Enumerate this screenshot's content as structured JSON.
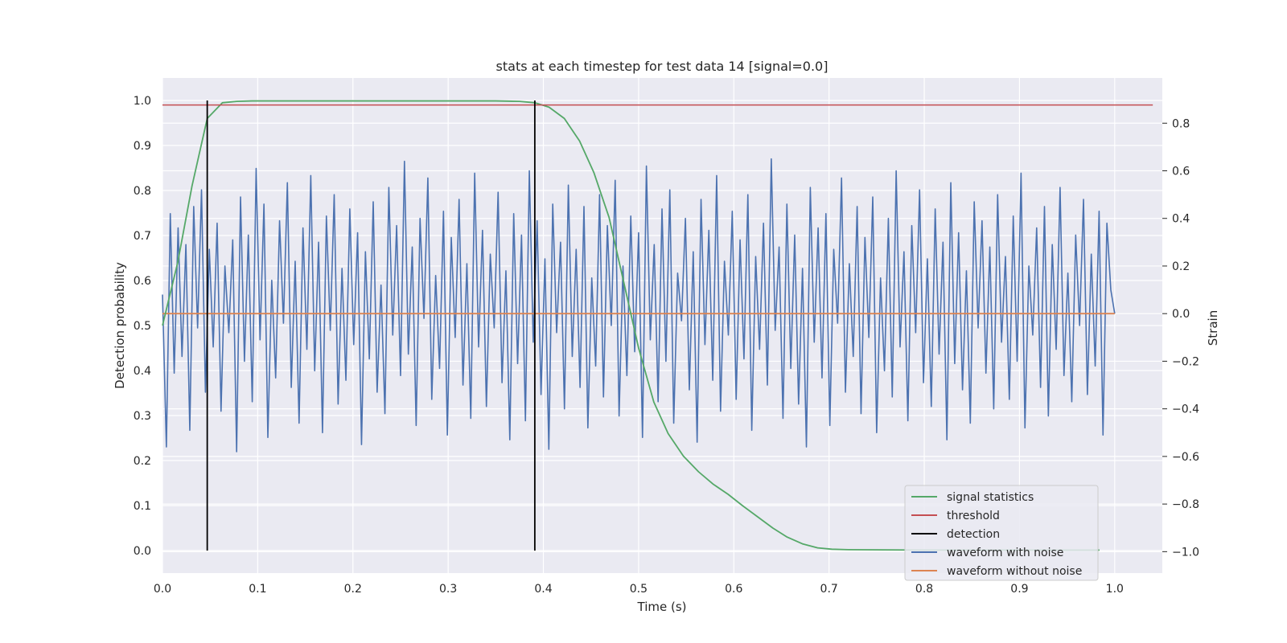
{
  "chart_data": {
    "type": "line",
    "title": "stats at each timestep for test data 14 [signal=0.0]",
    "xlabel": "Time (s)",
    "ylabel_left": "Detection probability",
    "ylabel_right": "Strain",
    "xlim": [
      0.0,
      1.05
    ],
    "ylim_left": [
      -0.05,
      1.05
    ],
    "ylim_right": [
      -1.09,
      0.99
    ],
    "x_ticks": [
      0.0,
      0.1,
      0.2,
      0.3,
      0.4,
      0.5,
      0.6,
      0.7,
      0.8,
      0.9,
      1.0
    ],
    "x_tick_labels": [
      "0.0",
      "0.1",
      "0.2",
      "0.3",
      "0.4",
      "0.5",
      "0.6",
      "0.7",
      "0.8",
      "0.9",
      "1.0"
    ],
    "y_left_ticks": [
      0.0,
      0.1,
      0.2,
      0.3,
      0.4,
      0.5,
      0.6,
      0.7,
      0.8,
      0.9,
      1.0
    ],
    "y_left_tick_labels": [
      "0.0",
      "0.1",
      "0.2",
      "0.3",
      "0.4",
      "0.5",
      "0.6",
      "0.7",
      "0.8",
      "0.9",
      "1.0"
    ],
    "y_right_ticks": [
      -1.0,
      -0.8,
      -0.6,
      -0.4,
      -0.2,
      0.0,
      0.2,
      0.4,
      0.6,
      0.8
    ],
    "y_right_tick_labels": [
      "−1.0",
      "−0.8",
      "−0.6",
      "−0.4",
      "−0.2",
      "0.0",
      "0.2",
      "0.4",
      "0.6",
      "0.8"
    ],
    "grid": true,
    "legend_position": "lower right",
    "series": [
      {
        "name": "signal statistics",
        "axis": "left",
        "color": "#55a868",
        "x": [
          0.0,
          0.016,
          0.031,
          0.047,
          0.063,
          0.078,
          0.094,
          0.11,
          0.125,
          0.2,
          0.3,
          0.35,
          0.375,
          0.391,
          0.406,
          0.422,
          0.438,
          0.453,
          0.469,
          0.484,
          0.5,
          0.516,
          0.531,
          0.547,
          0.563,
          0.578,
          0.594,
          0.609,
          0.625,
          0.641,
          0.656,
          0.672,
          0.688,
          0.703,
          0.72,
          0.8,
          0.9,
          0.984
        ],
        "y": [
          0.5,
          0.64,
          0.81,
          0.96,
          0.995,
          0.998,
          0.999,
          0.999,
          0.999,
          0.999,
          0.999,
          0.999,
          0.998,
          0.995,
          0.985,
          0.96,
          0.91,
          0.84,
          0.74,
          0.6,
          0.45,
          0.33,
          0.26,
          0.21,
          0.175,
          0.148,
          0.125,
          0.1,
          0.075,
          0.05,
          0.03,
          0.015,
          0.006,
          0.003,
          0.002,
          0.001,
          0.001,
          0.001
        ]
      },
      {
        "name": "threshold",
        "axis": "left",
        "color": "#c44e52",
        "x": [
          0.0,
          1.04
        ],
        "y": [
          0.99,
          0.99
        ]
      },
      {
        "name": "detection",
        "axis": "left",
        "color": "#000000",
        "type": "vlines",
        "x": [
          0.047,
          0.391
        ],
        "ymin": 0.0,
        "ymax": 1.0
      },
      {
        "name": "waveform with noise",
        "axis": "right",
        "color": "#4c72b0",
        "x_start": 0.0,
        "x_end": 1.0,
        "y": [
          0.08,
          -0.56,
          0.42,
          -0.25,
          0.36,
          -0.18,
          0.29,
          -0.49,
          0.45,
          -0.06,
          0.52,
          -0.33,
          0.27,
          -0.14,
          0.38,
          -0.41,
          0.2,
          -0.08,
          0.31,
          -0.58,
          0.49,
          -0.2,
          0.33,
          -0.37,
          0.61,
          -0.11,
          0.46,
          -0.52,
          0.14,
          -0.27,
          0.39,
          -0.04,
          0.55,
          -0.31,
          0.22,
          -0.46,
          0.36,
          -0.15,
          0.58,
          -0.24,
          0.3,
          -0.5,
          0.41,
          -0.07,
          0.5,
          -0.38,
          0.19,
          -0.28,
          0.44,
          -0.13,
          0.34,
          -0.55,
          0.26,
          -0.19,
          0.47,
          -0.33,
          0.12,
          -0.42,
          0.53,
          -0.09,
          0.37,
          -0.26,
          0.64,
          -0.17,
          0.28,
          -0.47,
          0.4,
          -0.02,
          0.57,
          -0.36,
          0.16,
          -0.23,
          0.43,
          -0.51,
          0.32,
          -0.1,
          0.48,
          -0.3,
          0.21,
          -0.44,
          0.59,
          -0.14,
          0.35,
          -0.39,
          0.25,
          -0.06,
          0.51,
          -0.29,
          0.18,
          -0.53,
          0.42,
          -0.21,
          0.33,
          -0.45,
          0.6,
          -0.12,
          0.39,
          -0.34,
          0.23,
          -0.57,
          0.46,
          -0.08,
          0.3,
          -0.4,
          0.54,
          -0.18,
          0.27,
          -0.31,
          0.45,
          -0.48,
          0.15,
          -0.22,
          0.5,
          -0.35,
          0.37,
          -0.05,
          0.56,
          -0.43,
          0.2,
          -0.26,
          0.41,
          -0.16,
          0.34,
          -0.52,
          0.62,
          -0.11,
          0.29,
          -0.37,
          0.44,
          -0.2,
          0.52,
          -0.46,
          0.17,
          -0.03,
          0.4,
          -0.32,
          0.26,
          -0.54,
          0.48,
          -0.13,
          0.35,
          -0.28,
          0.58,
          -0.41,
          0.22,
          -0.09,
          0.43,
          -0.36,
          0.31,
          -0.19,
          0.5,
          -0.49,
          0.24,
          -0.15,
          0.38,
          -0.3,
          0.65,
          -0.07,
          0.28,
          -0.44,
          0.46,
          -0.23,
          0.33,
          -0.38,
          0.19,
          -0.56,
          0.53,
          -0.12,
          0.36,
          -0.27,
          0.42,
          -0.47,
          0.27,
          -0.04,
          0.57,
          -0.33,
          0.21,
          -0.18,
          0.45,
          -0.42,
          0.32,
          -0.1,
          0.49,
          -0.5,
          0.15,
          -0.24,
          0.4,
          -0.35,
          0.6,
          -0.14,
          0.26,
          -0.45,
          0.37,
          -0.08,
          0.52,
          -0.29,
          0.23,
          -0.39,
          0.44,
          -0.17,
          0.3,
          -0.53,
          0.55,
          -0.21,
          0.34,
          -0.32,
          0.18,
          -0.46,
          0.47,
          -0.06,
          0.39,
          -0.25,
          0.28,
          -0.4,
          0.5,
          -0.12,
          0.24,
          -0.36,
          0.41,
          -0.2,
          0.59,
          -0.48,
          0.2,
          -0.09,
          0.36,
          -0.31,
          0.45,
          -0.43,
          0.29,
          -0.15,
          0.53,
          -0.26,
          0.17,
          -0.37,
          0.33,
          -0.05,
          0.48,
          -0.34,
          0.25,
          -0.22,
          0.43,
          -0.51,
          0.38,
          0.1,
          0.0
        ]
      },
      {
        "name": "waveform without noise",
        "axis": "right",
        "color": "#dd8452",
        "x": [
          0.0,
          1.0
        ],
        "y": [
          0.0,
          0.0
        ]
      }
    ]
  }
}
